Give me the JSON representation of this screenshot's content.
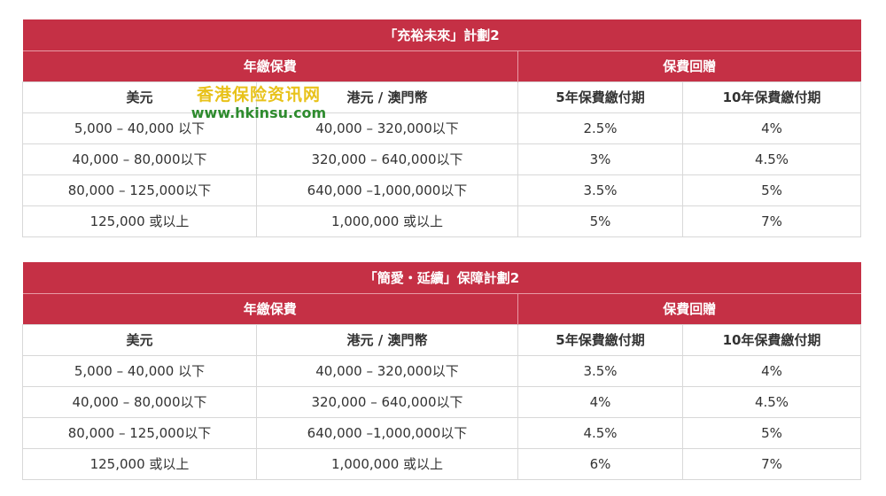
{
  "tables": [
    {
      "title": "「充裕未來」計劃2",
      "group_headers": [
        "年繳保費",
        "保費回贈"
      ],
      "columns": [
        "美元",
        "港元 / 澳門幣",
        "5年保費繳付期",
        "10年保費繳付期"
      ],
      "rows": [
        [
          "5,000 – 40,000 以下",
          "40,000 – 320,000以下",
          "2.5%",
          "4%"
        ],
        [
          "40,000 – 80,000以下",
          "320,000 – 640,000以下",
          "3%",
          "4.5%"
        ],
        [
          "80,000 – 125,000以下",
          "640,000 –1,000,000以下",
          "3.5%",
          "5%"
        ],
        [
          "125,000 或以上",
          "1,000,000 或以上",
          "5%",
          "7%"
        ]
      ]
    },
    {
      "title": "「簡愛・延續」保障計劃2",
      "group_headers": [
        "年繳保費",
        "保費回贈"
      ],
      "columns": [
        "美元",
        "港元 / 澳門幣",
        "5年保費繳付期",
        "10年保費繳付期"
      ],
      "rows": [
        [
          "5,000 – 40,000 以下",
          "40,000 – 320,000以下",
          "3.5%",
          "4%"
        ],
        [
          "40,000 – 80,000以下",
          "320,000 – 640,000以下",
          "4%",
          "4.5%"
        ],
        [
          "80,000 – 125,000以下",
          "640,000 –1,000,000以下",
          "4.5%",
          "5%"
        ],
        [
          "125,000 或以上",
          "1,000,000 或以上",
          "6%",
          "7%"
        ]
      ]
    }
  ],
  "watermark": {
    "name": "香港保险资讯网",
    "url": "www.hkinsu.com"
  },
  "colors": {
    "header_bg": "#c53045",
    "header_text": "#ffffff",
    "border": "#d8d8d8"
  }
}
